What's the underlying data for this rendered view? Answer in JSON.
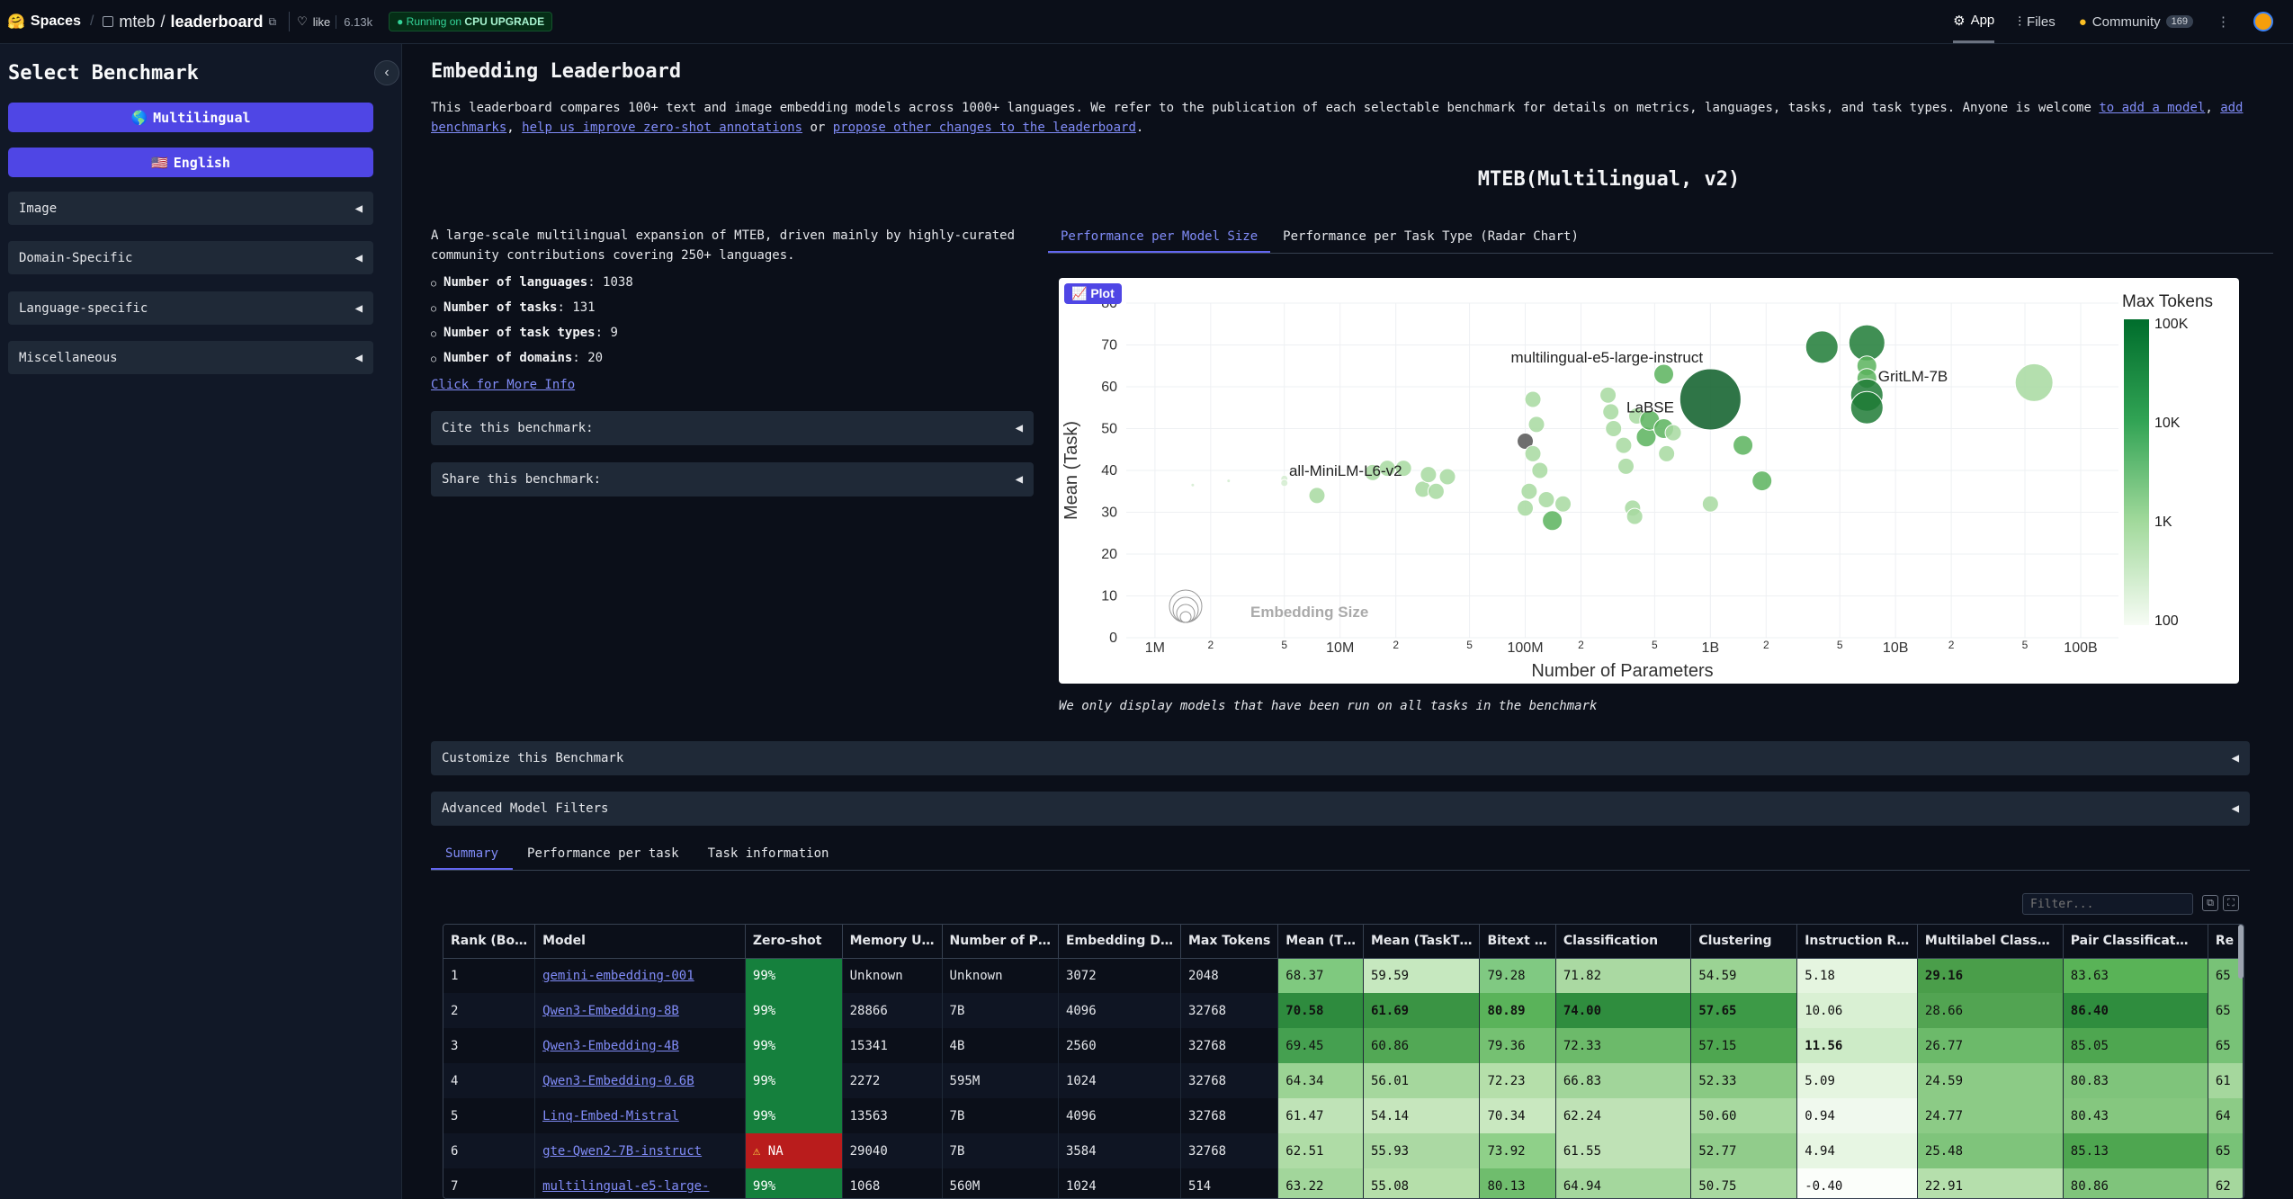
{
  "header": {
    "spaces_label": "Spaces",
    "repo_owner": "mteb",
    "repo_name": "leaderboard",
    "like_label": "like",
    "like_count": "6.13k",
    "running_prefix": "Running on",
    "running_hw": "CPU UPGRADE",
    "nav": {
      "app": "App",
      "files": "Files",
      "community": "Community",
      "community_count": "169"
    }
  },
  "sidebar": {
    "title": "Select Benchmark",
    "primary": [
      {
        "flag": "🌎",
        "label": "Multilingual"
      },
      {
        "flag": "🇺🇸",
        "label": "English"
      }
    ],
    "sections": [
      "Image",
      "Domain-Specific",
      "Language-specific",
      "Miscellaneous"
    ]
  },
  "main": {
    "title": "Embedding Leaderboard",
    "intro_text": "This leaderboard compares 100+ text and image embedding models across 1000+ languages. We refer to the publication of each selectable benchmark for details on metrics, languages, tasks, and task types. Anyone is welcome ",
    "intro_links": [
      "to add a model",
      "add benchmarks",
      "help us improve zero-shot annotations",
      "propose other changes to the leaderboard"
    ],
    "intro_or": " or ",
    "benchmark_name": "MTEB(Multilingual, v2)",
    "benchmark_desc": "A large-scale multilingual expansion of MTEB, driven mainly by highly-curated community contributions covering 250+ languages.",
    "stats": [
      {
        "label": "Number of languages",
        "value": "1038"
      },
      {
        "label": "Number of tasks",
        "value": "131"
      },
      {
        "label": "Number of task types",
        "value": "9"
      },
      {
        "label": "Number of domains",
        "value": "20"
      }
    ],
    "more_info": "Click for More Info",
    "cite": "Cite this benchmark:",
    "share": "Share this benchmark:",
    "plot_tabs": [
      "Performance per Model Size",
      "Performance per Task Type (Radar Chart)"
    ],
    "plot_badge": "Plot",
    "plot_note": "We only display models that have been run on all tasks in the benchmark",
    "customize": "Customize this Benchmark",
    "advanced": "Advanced Model Filters",
    "table_tabs": [
      "Summary",
      "Performance per task",
      "Task information"
    ],
    "filter_placeholder": "Filter..."
  },
  "chart_data": {
    "type": "scatter",
    "xlabel": "Number of Parameters",
    "ylabel": "Mean (Task)",
    "xscale": "log",
    "xlim": [
      700000,
      160000000000
    ],
    "ylim": [
      0,
      80
    ],
    "x_ticks": [
      "1M",
      "2",
      "5",
      "10M",
      "2",
      "5",
      "100M",
      "2",
      "5",
      "1B",
      "2",
      "5",
      "10B",
      "2",
      "5",
      "100B"
    ],
    "y_ticks": [
      0,
      10,
      20,
      30,
      40,
      50,
      60,
      70,
      80
    ],
    "legend_title": "Max Tokens",
    "colorbar_ticks": [
      "100K",
      "10K",
      "1K",
      "100"
    ],
    "size_legend": "Embedding Size",
    "labeled_points": [
      {
        "name": "multilingual-e5-large-instruct",
        "x": 560000000,
        "y": 63.2
      },
      {
        "name": "GritLM-7B",
        "x": 7200000000,
        "y": 60.9
      },
      {
        "name": "LaBSE",
        "x": 471000000,
        "y": 52.1
      },
      {
        "name": "all-MiniLM-L6-v2",
        "x": 22700000,
        "y": 37.8
      }
    ],
    "points": [
      {
        "x": 1600000.0,
        "y": 36.5,
        "t": 1
      },
      {
        "x": 2500000.0,
        "y": 37.5,
        "t": 1
      },
      {
        "x": 5000000.0,
        "y": 38,
        "t": 1
      },
      {
        "x": 5000000.0,
        "y": 37,
        "t": 1
      },
      {
        "x": 7500000.0,
        "y": 34,
        "t": 2
      },
      {
        "x": 15000000.0,
        "y": 39.5,
        "t": 2
      },
      {
        "x": 18000000.0,
        "y": 40.5,
        "t": 2
      },
      {
        "x": 22000000.0,
        "y": 40.5,
        "t": 2
      },
      {
        "x": 28000000.0,
        "y": 35.5,
        "t": 2
      },
      {
        "x": 33000000.0,
        "y": 35,
        "t": 2
      },
      {
        "x": 30000000.0,
        "y": 39,
        "t": 2
      },
      {
        "x": 38000000.0,
        "y": 38.5,
        "t": 2
      },
      {
        "x": 100000000.0,
        "y": 47,
        "t": 0
      },
      {
        "x": 110000000.0,
        "y": 44,
        "t": 2
      },
      {
        "x": 120000000.0,
        "y": 40,
        "t": 2
      },
      {
        "x": 105000000.0,
        "y": 35,
        "t": 2
      },
      {
        "x": 100000000.0,
        "y": 31,
        "t": 2
      },
      {
        "x": 130000000.0,
        "y": 33,
        "t": 2
      },
      {
        "x": 140000000.0,
        "y": 28,
        "t": 3
      },
      {
        "x": 160000000.0,
        "y": 32,
        "t": 2
      },
      {
        "x": 110000000.0,
        "y": 57,
        "t": 2
      },
      {
        "x": 115000000.0,
        "y": 51,
        "t": 2
      },
      {
        "x": 280000000.0,
        "y": 58,
        "t": 2
      },
      {
        "x": 290000000.0,
        "y": 54,
        "t": 2
      },
      {
        "x": 300000000.0,
        "y": 50,
        "t": 2
      },
      {
        "x": 340000000.0,
        "y": 46,
        "t": 2
      },
      {
        "x": 350000000.0,
        "y": 41,
        "t": 2
      },
      {
        "x": 400000000.0,
        "y": 53,
        "t": 2
      },
      {
        "x": 450000000.0,
        "y": 48,
        "t": 3
      },
      {
        "x": 470000000.0,
        "y": 52,
        "t": 3
      },
      {
        "x": 560000000.0,
        "y": 50,
        "t": 3
      },
      {
        "x": 560000000.0,
        "y": 63,
        "t": 3
      },
      {
        "x": 580000000.0,
        "y": 44,
        "t": 2
      },
      {
        "x": 380000000.0,
        "y": 31,
        "t": 2
      },
      {
        "x": 390000000.0,
        "y": 29,
        "t": 2
      },
      {
        "x": 630000000.0,
        "y": 49,
        "t": 2
      },
      {
        "x": 1000000000.0,
        "y": 57,
        "t": 4
      },
      {
        "x": 1500000000.0,
        "y": 46,
        "t": 3
      },
      {
        "x": 1000000000.0,
        "y": 32,
        "t": 2
      },
      {
        "x": 1900000000.0,
        "y": 37.5,
        "t": 3
      },
      {
        "x": 4000000000.0,
        "y": 69.5,
        "t": 4
      },
      {
        "x": 7000000000.0,
        "y": 70.5,
        "t": 4
      },
      {
        "x": 7000000000.0,
        "y": 65,
        "t": 3
      },
      {
        "x": 7000000000.0,
        "y": 62,
        "t": 3
      },
      {
        "x": 7000000000.0,
        "y": 58,
        "t": 4
      },
      {
        "x": 7000000000.0,
        "y": 55,
        "t": 4
      },
      {
        "x": 56000000000.0,
        "y": 61,
        "t": 2
      }
    ]
  },
  "table": {
    "columns": [
      "Rank (Bo…",
      "Model",
      "Zero-shot",
      "Memory U…",
      "Number of P…",
      "Embedding D…",
      "Max Tokens",
      "Mean (T…",
      "Mean (TaskT…",
      "Bitext …",
      "Classification",
      "Clustering",
      "Instruction R…",
      "Multilabel Class…",
      "Pair Classificat…",
      "Re"
    ],
    "rows": [
      {
        "rank": "1",
        "model": "gemini-embedding-001",
        "zs": "99%",
        "zs_na": false,
        "mem": "Unknown",
        "params": "Unknown",
        "dim": "3072",
        "tokens": "2048",
        "scores": [
          "68.37",
          "59.59",
          "79.28",
          "71.82",
          "54.59",
          "5.18",
          "29.16",
          "83.63",
          "65"
        ],
        "bold": [
          6
        ]
      },
      {
        "rank": "2",
        "model": "Qwen3-Embedding-8B",
        "zs": "99%",
        "zs_na": false,
        "mem": "28866",
        "params": "7B",
        "dim": "4096",
        "tokens": "32768",
        "scores": [
          "70.58",
          "61.69",
          "80.89",
          "74.00",
          "57.65",
          "10.06",
          "28.66",
          "86.40",
          "65"
        ],
        "bold": [
          0,
          1,
          2,
          3,
          4,
          7
        ]
      },
      {
        "rank": "3",
        "model": "Qwen3-Embedding-4B",
        "zs": "99%",
        "zs_na": false,
        "mem": "15341",
        "params": "4B",
        "dim": "2560",
        "tokens": "32768",
        "scores": [
          "69.45",
          "60.86",
          "79.36",
          "72.33",
          "57.15",
          "11.56",
          "26.77",
          "85.05",
          "65"
        ],
        "bold": [
          5
        ]
      },
      {
        "rank": "4",
        "model": "Qwen3-Embedding-0.6B",
        "zs": "99%",
        "zs_na": false,
        "mem": "2272",
        "params": "595M",
        "dim": "1024",
        "tokens": "32768",
        "scores": [
          "64.34",
          "56.01",
          "72.23",
          "66.83",
          "52.33",
          "5.09",
          "24.59",
          "80.83",
          "61"
        ],
        "bold": []
      },
      {
        "rank": "5",
        "model": "Linq-Embed-Mistral",
        "zs": "99%",
        "zs_na": false,
        "mem": "13563",
        "params": "7B",
        "dim": "4096",
        "tokens": "32768",
        "scores": [
          "61.47",
          "54.14",
          "70.34",
          "62.24",
          "50.60",
          "0.94",
          "24.77",
          "80.43",
          "64"
        ],
        "bold": []
      },
      {
        "rank": "6",
        "model": "gte-Qwen2-7B-instruct",
        "zs": "NA",
        "zs_na": true,
        "mem": "29040",
        "params": "7B",
        "dim": "3584",
        "tokens": "32768",
        "scores": [
          "62.51",
          "55.93",
          "73.92",
          "61.55",
          "52.77",
          "4.94",
          "25.48",
          "85.13",
          "65"
        ],
        "bold": []
      },
      {
        "rank": "7",
        "model": "multilingual-e5-large-",
        "zs": "99%",
        "zs_na": false,
        "mem": "1068",
        "params": "560M",
        "dim": "1024",
        "tokens": "514",
        "scores": [
          "63.22",
          "55.08",
          "80.13",
          "64.94",
          "50.75",
          "-0.40",
          "22.91",
          "80.86",
          "62"
        ],
        "bold": []
      }
    ]
  },
  "colors": {
    "accent": "#4f46e5",
    "link": "#818cf8",
    "bg": "#0b0f19",
    "panel": "#1f2937",
    "zs_green": "#15803d",
    "zs_red": "#b91c1c"
  }
}
